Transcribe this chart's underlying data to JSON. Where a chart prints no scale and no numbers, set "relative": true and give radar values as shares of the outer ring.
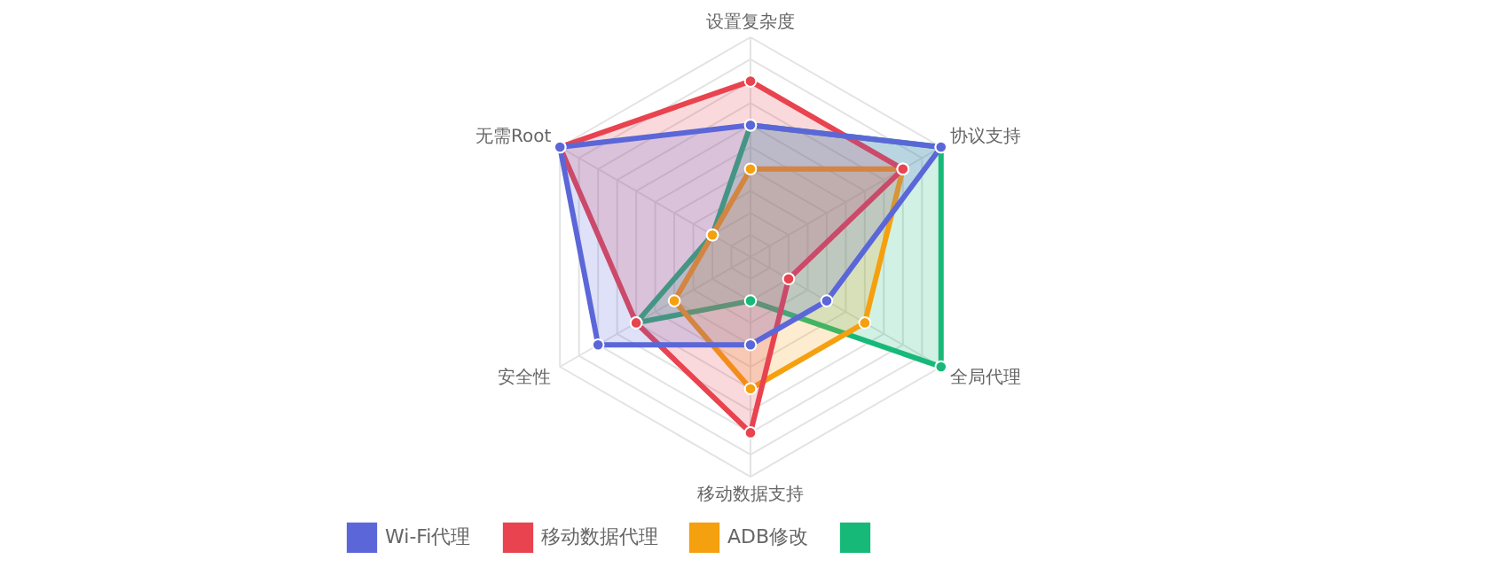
{
  "chart_data": {
    "type": "radar",
    "relative": true,
    "grid": true,
    "legend": "bottom",
    "marker": "circle",
    "categories": [
      "设置复杂度",
      "协议支持",
      "全局代理",
      "移动数据支持",
      "安全性",
      "无需Root"
    ],
    "series": [
      {
        "name": "Wi-Fi代理",
        "color": "#5b67d8",
        "values": [
          0.6,
          1.0,
          0.4,
          0.4,
          0.8,
          1.0
        ]
      },
      {
        "name": "移动数据代理",
        "color": "#e8434f",
        "values": [
          0.8,
          0.8,
          0.2,
          0.8,
          0.6,
          1.0
        ]
      },
      {
        "name": "ADB修改",
        "color": "#f5a00f",
        "values": [
          0.4,
          0.8,
          0.6,
          0.6,
          0.4,
          0.2
        ]
      },
      {
        "color": "#17b978",
        "values": [
          0.6,
          1.0,
          1.0,
          0.2,
          0.6,
          0.2
        ]
      }
    ]
  }
}
